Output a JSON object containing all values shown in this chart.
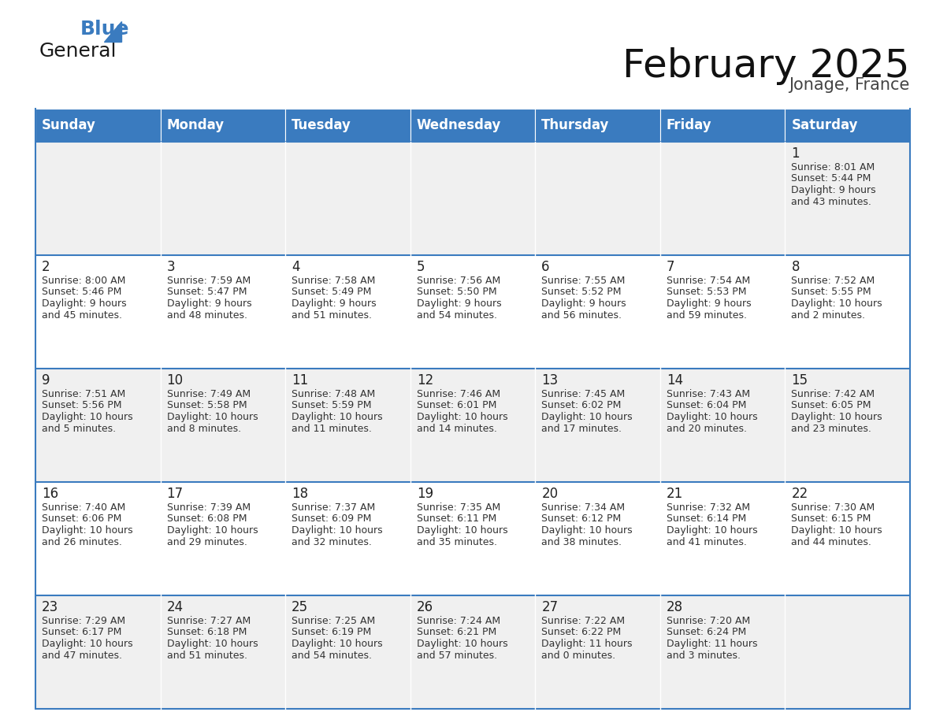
{
  "title": "February 2025",
  "subtitle": "Jonage, France",
  "header_color": "#3a7bbf",
  "header_text_color": "#ffffff",
  "row_bg_odd": "#f0f0f0",
  "row_bg_even": "#ffffff",
  "day_number_color": "#222222",
  "text_color": "#333333",
  "line_color": "#3a7bbf",
  "days_of_week": [
    "Sunday",
    "Monday",
    "Tuesday",
    "Wednesday",
    "Thursday",
    "Friday",
    "Saturday"
  ],
  "calendar_data": [
    [
      null,
      null,
      null,
      null,
      null,
      null,
      {
        "day": "1",
        "sunrise": "8:01 AM",
        "sunset": "5:44 PM",
        "daylight": "9 hours\nand 43 minutes."
      }
    ],
    [
      {
        "day": "2",
        "sunrise": "8:00 AM",
        "sunset": "5:46 PM",
        "daylight": "9 hours\nand 45 minutes."
      },
      {
        "day": "3",
        "sunrise": "7:59 AM",
        "sunset": "5:47 PM",
        "daylight": "9 hours\nand 48 minutes."
      },
      {
        "day": "4",
        "sunrise": "7:58 AM",
        "sunset": "5:49 PM",
        "daylight": "9 hours\nand 51 minutes."
      },
      {
        "day": "5",
        "sunrise": "7:56 AM",
        "sunset": "5:50 PM",
        "daylight": "9 hours\nand 54 minutes."
      },
      {
        "day": "6",
        "sunrise": "7:55 AM",
        "sunset": "5:52 PM",
        "daylight": "9 hours\nand 56 minutes."
      },
      {
        "day": "7",
        "sunrise": "7:54 AM",
        "sunset": "5:53 PM",
        "daylight": "9 hours\nand 59 minutes."
      },
      {
        "day": "8",
        "sunrise": "7:52 AM",
        "sunset": "5:55 PM",
        "daylight": "10 hours\nand 2 minutes."
      }
    ],
    [
      {
        "day": "9",
        "sunrise": "7:51 AM",
        "sunset": "5:56 PM",
        "daylight": "10 hours\nand 5 minutes."
      },
      {
        "day": "10",
        "sunrise": "7:49 AM",
        "sunset": "5:58 PM",
        "daylight": "10 hours\nand 8 minutes."
      },
      {
        "day": "11",
        "sunrise": "7:48 AM",
        "sunset": "5:59 PM",
        "daylight": "10 hours\nand 11 minutes."
      },
      {
        "day": "12",
        "sunrise": "7:46 AM",
        "sunset": "6:01 PM",
        "daylight": "10 hours\nand 14 minutes."
      },
      {
        "day": "13",
        "sunrise": "7:45 AM",
        "sunset": "6:02 PM",
        "daylight": "10 hours\nand 17 minutes."
      },
      {
        "day": "14",
        "sunrise": "7:43 AM",
        "sunset": "6:04 PM",
        "daylight": "10 hours\nand 20 minutes."
      },
      {
        "day": "15",
        "sunrise": "7:42 AM",
        "sunset": "6:05 PM",
        "daylight": "10 hours\nand 23 minutes."
      }
    ],
    [
      {
        "day": "16",
        "sunrise": "7:40 AM",
        "sunset": "6:06 PM",
        "daylight": "10 hours\nand 26 minutes."
      },
      {
        "day": "17",
        "sunrise": "7:39 AM",
        "sunset": "6:08 PM",
        "daylight": "10 hours\nand 29 minutes."
      },
      {
        "day": "18",
        "sunrise": "7:37 AM",
        "sunset": "6:09 PM",
        "daylight": "10 hours\nand 32 minutes."
      },
      {
        "day": "19",
        "sunrise": "7:35 AM",
        "sunset": "6:11 PM",
        "daylight": "10 hours\nand 35 minutes."
      },
      {
        "day": "20",
        "sunrise": "7:34 AM",
        "sunset": "6:12 PM",
        "daylight": "10 hours\nand 38 minutes."
      },
      {
        "day": "21",
        "sunrise": "7:32 AM",
        "sunset": "6:14 PM",
        "daylight": "10 hours\nand 41 minutes."
      },
      {
        "day": "22",
        "sunrise": "7:30 AM",
        "sunset": "6:15 PM",
        "daylight": "10 hours\nand 44 minutes."
      }
    ],
    [
      {
        "day": "23",
        "sunrise": "7:29 AM",
        "sunset": "6:17 PM",
        "daylight": "10 hours\nand 47 minutes."
      },
      {
        "day": "24",
        "sunrise": "7:27 AM",
        "sunset": "6:18 PM",
        "daylight": "10 hours\nand 51 minutes."
      },
      {
        "day": "25",
        "sunrise": "7:25 AM",
        "sunset": "6:19 PM",
        "daylight": "10 hours\nand 54 minutes."
      },
      {
        "day": "26",
        "sunrise": "7:24 AM",
        "sunset": "6:21 PM",
        "daylight": "10 hours\nand 57 minutes."
      },
      {
        "day": "27",
        "sunrise": "7:22 AM",
        "sunset": "6:22 PM",
        "daylight": "11 hours\nand 0 minutes."
      },
      {
        "day": "28",
        "sunrise": "7:20 AM",
        "sunset": "6:24 PM",
        "daylight": "11 hours\nand 3 minutes."
      },
      null
    ]
  ],
  "logo_text_general": "General",
  "logo_text_blue": "Blue",
  "logo_color_general": "#1a1a1a",
  "logo_color_blue": "#3a7bbf",
  "logo_triangle_color": "#3a7bbf",
  "title_fontsize": 36,
  "subtitle_fontsize": 15,
  "header_fontsize": 12,
  "day_num_fontsize": 12,
  "cell_text_fontsize": 9
}
